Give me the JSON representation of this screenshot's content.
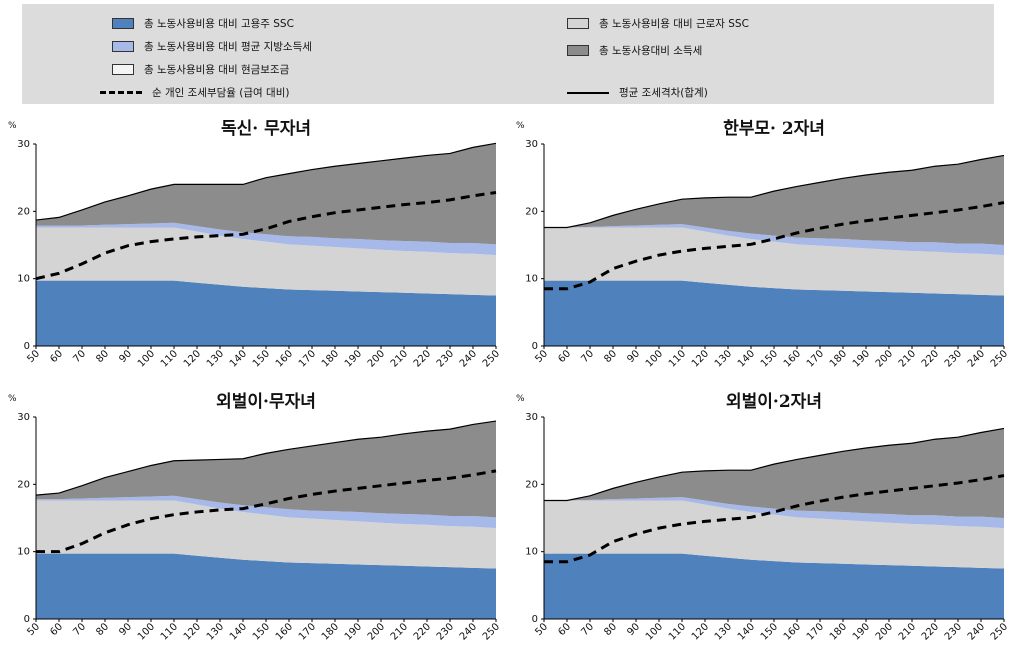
{
  "legend": {
    "items": [
      {
        "key": "employer_ssc",
        "label": "총 노동사용비용 대비 고용주 SSC",
        "type": "swatch",
        "color": "#4f81bd"
      },
      {
        "key": "local_tax",
        "label": "총 노동사용비용 대비 평균 지방소득세",
        "type": "swatch",
        "color": "#a7b9e8"
      },
      {
        "key": "cash_benefit",
        "label": "총 노동사용비용 대비 현금보조금",
        "type": "swatch",
        "color": "#f4f4f4"
      },
      {
        "key": "net_personal",
        "label": "순 개인 조세부담율 (급여 대비)",
        "type": "dash",
        "color": "#000000"
      },
      {
        "key": "employee_ssc",
        "label": "총 노동사용비용 대비 근로자 SSC",
        "type": "swatch",
        "color": "#d4d4d4"
      },
      {
        "key": "income_tax",
        "label": "총 노동사용대비 소득세",
        "type": "swatch",
        "color": "#8c8c8c"
      },
      {
        "key": "tax_wedge",
        "label": "평균 조세격차(합계)",
        "type": "solid",
        "color": "#000000"
      }
    ]
  },
  "chart_data": [
    {
      "type": "area",
      "title": "독신· 무자녀",
      "ylabel": "%",
      "ylim": [
        0,
        30
      ],
      "yticks": [
        0,
        10,
        20,
        30
      ],
      "x": [
        50,
        60,
        70,
        80,
        90,
        100,
        110,
        120,
        130,
        140,
        150,
        160,
        170,
        180,
        190,
        200,
        210,
        220,
        230,
        240,
        250
      ],
      "series": [
        {
          "name": "총 노동사용비용 대비 고용주 SSC",
          "values": [
            9.7,
            9.7,
            9.7,
            9.7,
            9.7,
            9.7,
            9.7,
            9.4,
            9.1,
            8.8,
            8.6,
            8.4,
            8.3,
            8.2,
            8.1,
            8.0,
            7.9,
            7.8,
            7.7,
            7.6,
            7.5
          ]
        },
        {
          "name": "총 노동사용비용 대비 근로자 SSC",
          "values": [
            7.9,
            7.9,
            7.9,
            7.9,
            7.9,
            7.9,
            7.9,
            7.6,
            7.3,
            7.1,
            6.9,
            6.7,
            6.6,
            6.5,
            6.4,
            6.3,
            6.2,
            6.2,
            6.1,
            6.1,
            6.0
          ]
        },
        {
          "name": "총 노동사용비용 대비 평균 지방소득세",
          "values": [
            0.3,
            0.3,
            0.3,
            0.4,
            0.5,
            0.6,
            0.7,
            0.8,
            0.9,
            1.0,
            1.1,
            1.2,
            1.3,
            1.3,
            1.4,
            1.4,
            1.5,
            1.5,
            1.5,
            1.6,
            1.6
          ]
        },
        {
          "name": "총 노동사용대비 소득세",
          "values": [
            0.8,
            1.2,
            2.3,
            3.4,
            4.2,
            5.1,
            5.7,
            6.2,
            6.7,
            7.1,
            8.4,
            9.3,
            10.0,
            10.7,
            11.2,
            11.8,
            12.3,
            12.8,
            13.3,
            14.2,
            15.0
          ]
        }
      ],
      "net_personal": [
        10.0,
        10.8,
        12.2,
        13.8,
        14.9,
        15.5,
        15.9,
        16.2,
        16.4,
        16.6,
        17.4,
        18.5,
        19.2,
        19.8,
        20.2,
        20.6,
        21.0,
        21.3,
        21.7,
        22.3,
        22.8
      ]
    },
    {
      "type": "area",
      "title": "한부모· 2자녀",
      "ylabel": "%",
      "ylim": [
        0,
        30
      ],
      "yticks": [
        0,
        10,
        20,
        30
      ],
      "x": [
        50,
        60,
        70,
        80,
        90,
        100,
        110,
        120,
        130,
        140,
        150,
        160,
        170,
        180,
        190,
        200,
        210,
        220,
        230,
        240,
        250
      ],
      "series": [
        {
          "name": "총 노동사용비용 대비 고용주 SSC",
          "values": [
            9.7,
            9.7,
            9.7,
            9.7,
            9.7,
            9.7,
            9.7,
            9.4,
            9.1,
            8.8,
            8.6,
            8.4,
            8.3,
            8.2,
            8.1,
            8.0,
            7.9,
            7.8,
            7.7,
            7.6,
            7.5
          ]
        },
        {
          "name": "총 노동사용비용 대비 근로자 SSC",
          "values": [
            7.9,
            7.9,
            7.9,
            7.9,
            7.9,
            7.9,
            7.9,
            7.6,
            7.3,
            7.1,
            6.9,
            6.7,
            6.6,
            6.5,
            6.4,
            6.3,
            6.2,
            6.2,
            6.1,
            6.1,
            6.0
          ]
        },
        {
          "name": "총 노동사용비용 대비 평균 지방소득세",
          "values": [
            0.0,
            0.0,
            0.1,
            0.2,
            0.3,
            0.4,
            0.5,
            0.6,
            0.7,
            0.8,
            0.9,
            1.0,
            1.1,
            1.2,
            1.2,
            1.3,
            1.3,
            1.4,
            1.4,
            1.5,
            1.5
          ]
        },
        {
          "name": "총 노동사용대비 소득세",
          "values": [
            0.0,
            0.0,
            0.6,
            1.6,
            2.4,
            3.1,
            3.7,
            4.4,
            5.0,
            5.4,
            6.6,
            7.6,
            8.3,
            9.0,
            9.7,
            10.2,
            10.7,
            11.3,
            11.8,
            12.5,
            13.3
          ]
        }
      ],
      "net_personal": [
        8.5,
        8.5,
        9.5,
        11.5,
        12.6,
        13.5,
        14.1,
        14.5,
        14.8,
        15.1,
        15.9,
        16.8,
        17.5,
        18.1,
        18.6,
        19.0,
        19.4,
        19.8,
        20.2,
        20.7,
        21.3
      ]
    },
    {
      "type": "area",
      "title": "외벌이·무자녀",
      "ylabel": "%",
      "ylim": [
        0,
        30
      ],
      "yticks": [
        0,
        10,
        20,
        30
      ],
      "x": [
        50,
        60,
        70,
        80,
        90,
        100,
        110,
        120,
        130,
        140,
        150,
        160,
        170,
        180,
        190,
        200,
        210,
        220,
        230,
        240,
        250
      ],
      "series": [
        {
          "name": "총 노동사용비용 대비 고용주 SSC",
          "values": [
            9.7,
            9.7,
            9.7,
            9.7,
            9.7,
            9.7,
            9.7,
            9.4,
            9.1,
            8.8,
            8.6,
            8.4,
            8.3,
            8.2,
            8.1,
            8.0,
            7.9,
            7.8,
            7.7,
            7.6,
            7.5
          ]
        },
        {
          "name": "총 노동사용비용 대비 근로자 SSC",
          "values": [
            7.9,
            7.9,
            7.9,
            7.9,
            7.9,
            7.9,
            7.9,
            7.6,
            7.3,
            7.1,
            6.9,
            6.7,
            6.6,
            6.5,
            6.4,
            6.3,
            6.2,
            6.2,
            6.1,
            6.1,
            6.0
          ]
        },
        {
          "name": "총 노동사용비용 대비 평균 지방소득세",
          "values": [
            0.2,
            0.2,
            0.3,
            0.4,
            0.5,
            0.6,
            0.7,
            0.8,
            0.9,
            1.0,
            1.1,
            1.2,
            1.2,
            1.3,
            1.4,
            1.4,
            1.5,
            1.5,
            1.5,
            1.6,
            1.6
          ]
        },
        {
          "name": "총 노동사용대비 소득세",
          "values": [
            0.6,
            0.9,
            1.9,
            3.0,
            3.8,
            4.6,
            5.2,
            5.8,
            6.4,
            6.9,
            8.0,
            8.9,
            9.6,
            10.2,
            10.8,
            11.3,
            11.9,
            12.4,
            12.9,
            13.6,
            14.3
          ]
        }
      ],
      "net_personal": [
        10.0,
        10.0,
        11.2,
        12.8,
        14.0,
        14.9,
        15.5,
        15.9,
        16.2,
        16.4,
        17.1,
        17.9,
        18.5,
        19.0,
        19.4,
        19.8,
        20.2,
        20.6,
        20.9,
        21.4,
        22.0
      ]
    },
    {
      "type": "area",
      "title": "외벌이·2자녀",
      "ylabel": "%",
      "ylim": [
        0,
        30
      ],
      "yticks": [
        0,
        10,
        20,
        30
      ],
      "x": [
        50,
        60,
        70,
        80,
        90,
        100,
        110,
        120,
        130,
        140,
        150,
        160,
        170,
        180,
        190,
        200,
        210,
        220,
        230,
        240,
        250
      ],
      "series": [
        {
          "name": "총 노동사용비용 대비 고용주 SSC",
          "values": [
            9.7,
            9.7,
            9.7,
            9.7,
            9.7,
            9.7,
            9.7,
            9.4,
            9.1,
            8.8,
            8.6,
            8.4,
            8.3,
            8.2,
            8.1,
            8.0,
            7.9,
            7.8,
            7.7,
            7.6,
            7.5
          ]
        },
        {
          "name": "총 노동사용비용 대비 근로자 SSC",
          "values": [
            7.9,
            7.9,
            7.9,
            7.9,
            7.9,
            7.9,
            7.9,
            7.6,
            7.3,
            7.1,
            6.9,
            6.7,
            6.6,
            6.5,
            6.4,
            6.3,
            6.2,
            6.2,
            6.1,
            6.1,
            6.0
          ]
        },
        {
          "name": "총 노동사용비용 대비 평균 지방소득세",
          "values": [
            0.0,
            0.0,
            0.1,
            0.2,
            0.3,
            0.4,
            0.5,
            0.6,
            0.7,
            0.8,
            0.9,
            1.0,
            1.1,
            1.2,
            1.2,
            1.3,
            1.3,
            1.4,
            1.4,
            1.5,
            1.5
          ]
        },
        {
          "name": "총 노동사용대비 소득세",
          "values": [
            0.0,
            0.0,
            0.6,
            1.6,
            2.4,
            3.1,
            3.7,
            4.4,
            5.0,
            5.4,
            6.6,
            7.6,
            8.3,
            9.0,
            9.7,
            10.2,
            10.7,
            11.3,
            11.8,
            12.5,
            13.3
          ]
        }
      ],
      "net_personal": [
        8.5,
        8.5,
        9.5,
        11.5,
        12.6,
        13.5,
        14.1,
        14.5,
        14.8,
        15.1,
        15.9,
        16.8,
        17.5,
        18.1,
        18.6,
        19.0,
        19.4,
        19.8,
        20.2,
        20.7,
        21.3
      ]
    }
  ]
}
